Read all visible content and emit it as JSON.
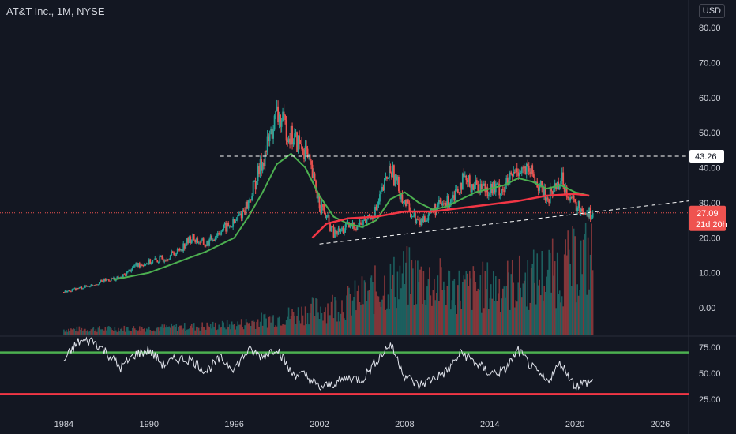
{
  "header": {
    "title": "AT&T Inc., 1M, NYSE",
    "currency": "USD"
  },
  "colors": {
    "background": "#131722",
    "up": "#26a69a",
    "down": "#ef5350",
    "ma_fast": "#4caf50",
    "ma_slow": "#f23645",
    "rsi_line": "#e0e3eb",
    "rsi_upper": "#4caf50",
    "rsi_lower": "#f23645"
  },
  "chart_data": [
    {
      "type": "line",
      "title": "AT&T Inc., 1M, NYSE",
      "y_ticks": [
        "80.00",
        "70.00",
        "60.00",
        "50.00",
        "40.00",
        "30.00",
        "20.00",
        "10.00",
        "0.00"
      ],
      "x_ticks": [
        "1984",
        "1990",
        "1996",
        "2002",
        "2008",
        "2014",
        "2020",
        "2026"
      ],
      "ylim": [
        -5,
        85
      ],
      "xlim": [
        1979.5,
        2028
      ],
      "grid": false,
      "price_series": [
        [
          1984,
          4.5
        ],
        [
          1985,
          5.5
        ],
        [
          1986,
          6.5
        ],
        [
          1987,
          8
        ],
        [
          1988,
          8.5
        ],
        [
          1989,
          12
        ],
        [
          1990,
          13
        ],
        [
          1991,
          14
        ],
        [
          1992,
          16
        ],
        [
          1993,
          20
        ],
        [
          1994,
          18
        ],
        [
          1995,
          22
        ],
        [
          1996,
          24
        ],
        [
          1997,
          30
        ],
        [
          1998,
          42
        ],
        [
          1999,
          55
        ],
        [
          2000,
          49
        ],
        [
          2001,
          45
        ],
        [
          2002,
          30
        ],
        [
          2003,
          21
        ],
        [
          2004,
          23
        ],
        [
          2005,
          24
        ],
        [
          2006,
          28
        ],
        [
          2007,
          40
        ],
        [
          2008,
          30
        ],
        [
          2009,
          24
        ],
        [
          2010,
          28
        ],
        [
          2011,
          30
        ],
        [
          2012,
          36
        ],
        [
          2013,
          35
        ],
        [
          2014,
          34
        ],
        [
          2015,
          34
        ],
        [
          2016,
          40
        ],
        [
          2017,
          38
        ],
        [
          2018,
          31
        ],
        [
          2019,
          37
        ],
        [
          2020,
          29
        ],
        [
          2021,
          27.09
        ]
      ],
      "ma_fast": [
        [
          1987.5,
          8
        ],
        [
          1990,
          10
        ],
        [
          1992,
          13
        ],
        [
          1994,
          16
        ],
        [
          1996,
          20
        ],
        [
          1997,
          26
        ],
        [
          1998,
          33
        ],
        [
          1999,
          41
        ],
        [
          2000,
          44
        ],
        [
          2001,
          40
        ],
        [
          2002,
          32
        ],
        [
          2003,
          26
        ],
        [
          2004,
          24
        ],
        [
          2005,
          23
        ],
        [
          2006,
          25
        ],
        [
          2007,
          31
        ],
        [
          2008,
          33
        ],
        [
          2009,
          30
        ],
        [
          2010,
          28
        ],
        [
          2011,
          29
        ],
        [
          2012,
          31
        ],
        [
          2013,
          33
        ],
        [
          2014,
          34
        ],
        [
          2015,
          35
        ],
        [
          2016,
          37
        ],
        [
          2017,
          36
        ],
        [
          2018,
          34
        ],
        [
          2019,
          35
        ],
        [
          2020,
          33
        ],
        [
          2021,
          32
        ]
      ],
      "ma_slow": [
        [
          2001.5,
          20
        ],
        [
          2002.5,
          24
        ],
        [
          2004,
          25.5
        ],
        [
          2006,
          26
        ],
        [
          2008,
          27.5
        ],
        [
          2010,
          27.5
        ],
        [
          2012,
          28.5
        ],
        [
          2014,
          29.5
        ],
        [
          2016,
          30.5
        ],
        [
          2018,
          32
        ],
        [
          2020,
          32.5
        ],
        [
          2021,
          32
        ]
      ],
      "horizontal_level": {
        "value": 43.26,
        "label": "43.26",
        "from": 1995
      },
      "trendline": {
        "from": [
          2002,
          18.2
        ],
        "to": [
          2028,
          30.5
        ]
      },
      "last_price": {
        "value": 27.09,
        "label": "27.09",
        "countdown": "21d 20h"
      },
      "volume": [
        [
          1984,
          0.8
        ],
        [
          1990,
          1.0
        ],
        [
          1996,
          1.5
        ],
        [
          2000,
          3
        ],
        [
          2004,
          5
        ],
        [
          2008,
          9
        ],
        [
          2012,
          7
        ],
        [
          2016,
          8
        ],
        [
          2019,
          10
        ],
        [
          2021,
          12
        ]
      ]
    },
    {
      "type": "line",
      "y_ticks": [
        "75.00",
        "50.00",
        "25.00"
      ],
      "ylim": [
        20,
        85
      ],
      "upper_band": 70,
      "lower_band": 30,
      "rsi": [
        [
          1984,
          62
        ],
        [
          1985,
          80
        ],
        [
          1986,
          82
        ],
        [
          1987,
          70
        ],
        [
          1988,
          55
        ],
        [
          1989,
          68
        ],
        [
          1990,
          72
        ],
        [
          1991,
          58
        ],
        [
          1992,
          64
        ],
        [
          1993,
          63
        ],
        [
          1994,
          52
        ],
        [
          1995,
          64
        ],
        [
          1996,
          55
        ],
        [
          1997,
          72
        ],
        [
          1998,
          66
        ],
        [
          1999,
          75
        ],
        [
          2000,
          50
        ],
        [
          2001,
          48
        ],
        [
          2002,
          36
        ],
        [
          2003,
          40
        ],
        [
          2004,
          46
        ],
        [
          2005,
          44
        ],
        [
          2006,
          62
        ],
        [
          2007,
          78
        ],
        [
          2008,
          48
        ],
        [
          2009,
          38
        ],
        [
          2010,
          45
        ],
        [
          2011,
          52
        ],
        [
          2012,
          70
        ],
        [
          2013,
          60
        ],
        [
          2014,
          50
        ],
        [
          2015,
          52
        ],
        [
          2016,
          72
        ],
        [
          2017,
          55
        ],
        [
          2018,
          42
        ],
        [
          2019,
          60
        ],
        [
          2020,
          38
        ],
        [
          2021,
          42
        ]
      ]
    }
  ]
}
